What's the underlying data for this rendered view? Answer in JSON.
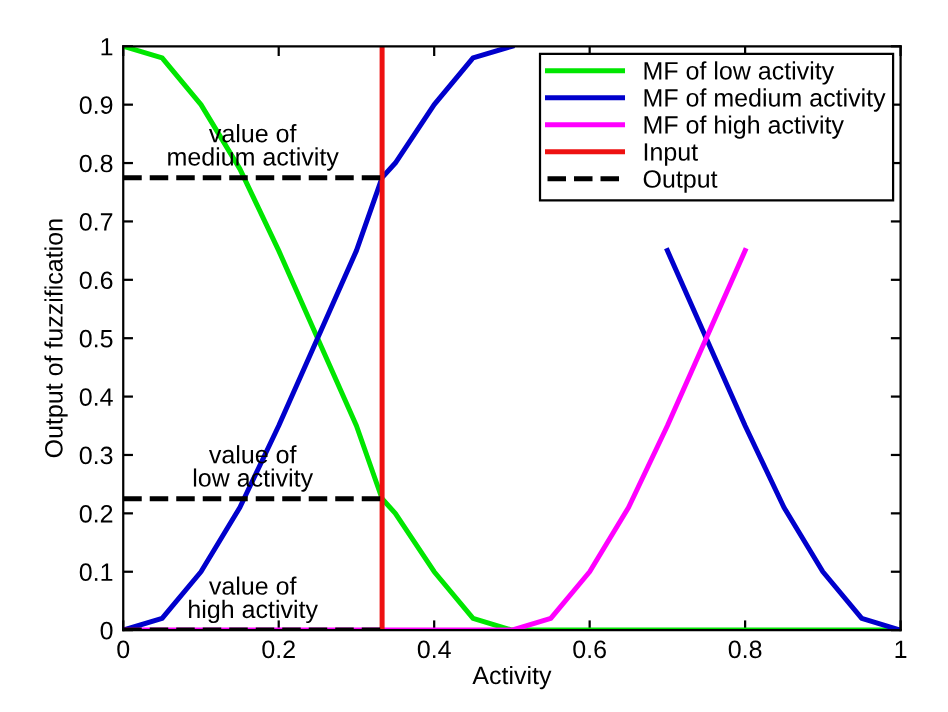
{
  "chart_data": {
    "type": "line",
    "xlabel": "Activity",
    "ylabel": "Output of fuzzification",
    "xlim": [
      0,
      1
    ],
    "ylim": [
      0,
      1
    ],
    "xticks": [
      0,
      0.2,
      0.4,
      0.6,
      0.8,
      1
    ],
    "yticks": [
      0,
      0.1,
      0.2,
      0.3,
      0.4,
      0.5,
      0.6,
      0.7,
      0.8,
      0.9,
      1
    ],
    "grid": false,
    "legend": "top right",
    "line_style": "solid",
    "marker": "none",
    "series": [
      {
        "name": "MF of low activity",
        "color": "#00e600",
        "x": [
          0,
          0.05,
          0.1,
          0.15,
          0.2,
          0.25,
          0.3,
          0.333,
          0.35,
          0.4,
          0.45,
          0.5,
          0.75,
          1
        ],
        "values": [
          1,
          0.98,
          0.9,
          0.79,
          0.65,
          0.5,
          0.35,
          0.225,
          0.2,
          0.1,
          0.02,
          0,
          0,
          0
        ]
      },
      {
        "name": "MF of medium activity",
        "color": "#0000cc",
        "x": [
          0,
          0.05,
          0.1,
          0.15,
          0.2,
          0.25,
          0.3,
          0.333,
          0.35,
          0.4,
          0.45,
          0.5,
          0.55,
          0.6,
          0.65,
          0.7,
          0.75,
          0.8,
          0.85,
          0.9,
          0.95,
          1
        ],
        "values": [
          0,
          0.02,
          0.1,
          0.21,
          0.35,
          0.5,
          0.65,
          0.775,
          0.8,
          0.9,
          0.98,
          1,
          null,
          null,
          null,
          0.65,
          0.5,
          0.35,
          0.21,
          0.1,
          0.02,
          0
        ]
      },
      {
        "name": "MF of high activity",
        "color": "#ff00ff",
        "x": [
          0,
          0.5,
          0.55,
          0.6,
          0.65,
          0.7,
          0.75,
          0.8
        ],
        "values": [
          0,
          0,
          0.02,
          0.1,
          0.21,
          0.35,
          0.5,
          0.65
        ]
      },
      {
        "name": "Input",
        "color": "#ee1111",
        "x": [
          0.333,
          0.333
        ],
        "values": [
          0,
          1
        ]
      },
      {
        "name": "Output",
        "color": "#000000",
        "line_style": "dashed",
        "x": [
          0,
          0.333
        ],
        "values": [
          0.775,
          0.775
        ]
      },
      {
        "color": "#000000",
        "line_style": "dashed",
        "x": [
          0,
          0.333
        ],
        "values": [
          0.225,
          0.225
        ]
      },
      {
        "color": "#000000",
        "line_style": "dashed",
        "x": [
          0,
          0.333
        ],
        "values": [
          0,
          0
        ]
      }
    ],
    "annotations": [
      "value of\nmedium activity",
      "value of\nlow activity",
      "value of\nhigh activity"
    ]
  }
}
